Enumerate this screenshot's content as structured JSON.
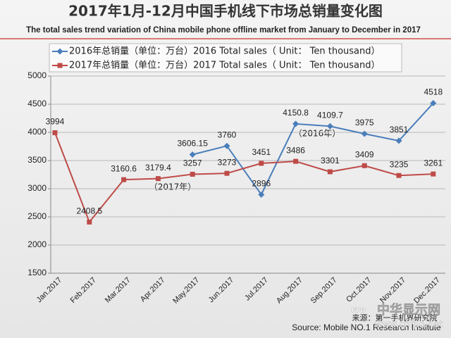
{
  "chart_data": {
    "type": "line",
    "title": "2017年1月-12月中国手机线下市场总销量变化图",
    "subtitle": "The total sales trend variation of China mobile phone offline market from January to December in 2017",
    "categories": [
      "Jan.2017",
      "Feb.2017",
      "Mar.2017",
      "Apr.2017",
      "May.2017",
      "Jun.2017",
      "Jul.2017",
      "Aug.2017",
      "Sep.2017",
      "Oct.2017",
      "Nov.2017",
      "Dec.2017"
    ],
    "series": [
      {
        "name": "2016年总销量（单位：万台）2016 Total sales（ Unit： Ten thousand）",
        "color": "#4a7ebb",
        "marker": "diamond",
        "values": [
          null,
          null,
          null,
          null,
          3606.15,
          3760,
          2896,
          4150.8,
          4109.7,
          3975,
          3851,
          4518
        ]
      },
      {
        "name": "2017年总销量（单位：万台）2017 Total sales（ Unit： Ten thousand）",
        "color": "#be4b48",
        "marker": "square",
        "values": [
          3994,
          2408.5,
          3160.6,
          3179.4,
          3257,
          3273,
          3451,
          3486,
          3301,
          3409,
          3235,
          3261
        ]
      }
    ],
    "ylim": [
      1500,
      5000
    ],
    "yticks": [
      1500,
      2000,
      2500,
      3000,
      3500,
      4000,
      4500,
      5000
    ],
    "grid": true,
    "annotations": [
      "（2016年）",
      "（2017年）"
    ],
    "source": [
      "来源：第一手机界研究院",
      "Source: Mobile NO.1 Research Institute"
    ],
    "watermark": [
      "FPD",
      "中华显示网",
      "www.cnfpd.net"
    ]
  }
}
